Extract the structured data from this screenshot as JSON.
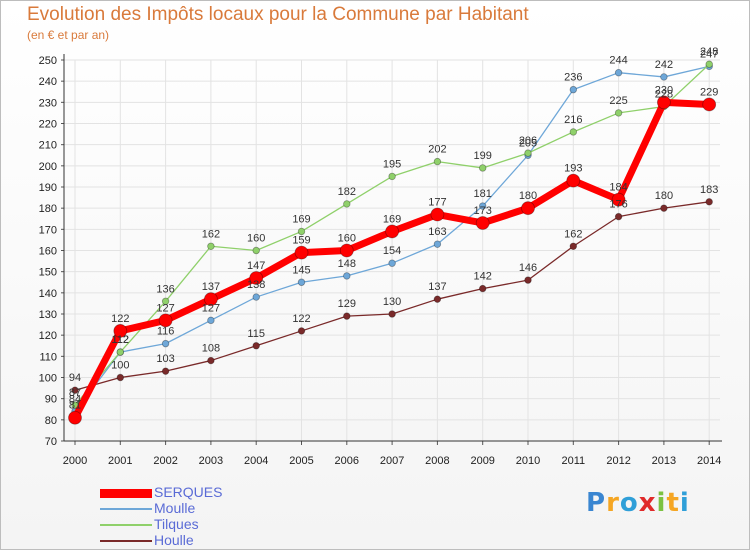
{
  "title": "Evolution des Impôts locaux pour la Commune par Habitant",
  "subtitle": "(en € et par an)",
  "brand": {
    "letters": [
      "P",
      "r",
      "o",
      "x",
      "i",
      "t",
      "i"
    ],
    "colors": [
      "#3a86d1",
      "#f5a623",
      "#2f9fd8",
      "#e02a2a",
      "#7cc242",
      "#f5a623",
      "#2f9fd8"
    ]
  },
  "chart_data": {
    "type": "line",
    "title": "Evolution des Impôts locaux pour la Commune par Habitant",
    "subtitle": "(en € et par an)",
    "xlabel": "",
    "ylabel": "",
    "categories": [
      "2000",
      "2001",
      "2002",
      "2003",
      "2004",
      "2005",
      "2006",
      "2007",
      "2008",
      "2009",
      "2010",
      "2011",
      "2012",
      "2013",
      "2014"
    ],
    "ylim": [
      70,
      250
    ],
    "yticks": [
      70,
      80,
      90,
      100,
      110,
      120,
      130,
      140,
      150,
      160,
      170,
      180,
      190,
      200,
      210,
      220,
      230,
      240,
      250
    ],
    "grid": true,
    "legend_position": "bottom-left",
    "series": [
      {
        "name": "SERQUES",
        "color": "#ff0000",
        "values": [
          81,
          122,
          127,
          137,
          147,
          159,
          160,
          169,
          177,
          173,
          180,
          193,
          184,
          230,
          229
        ]
      },
      {
        "name": "Moulle",
        "color": "#6ea7d8",
        "values": [
          84,
          112,
          116,
          127,
          138,
          145,
          148,
          154,
          163,
          181,
          205,
          236,
          244,
          242,
          247
        ]
      },
      {
        "name": "Tilques",
        "color": "#8fd06a",
        "values": [
          87,
          112,
          136,
          162,
          160,
          169,
          182,
          195,
          202,
          199,
          206,
          216,
          225,
          228,
          248
        ]
      },
      {
        "name": "Houlle",
        "color": "#7a2a2a",
        "values": [
          94,
          100,
          103,
          108,
          115,
          122,
          129,
          130,
          137,
          142,
          146,
          162,
          176,
          180,
          183
        ]
      }
    ]
  }
}
